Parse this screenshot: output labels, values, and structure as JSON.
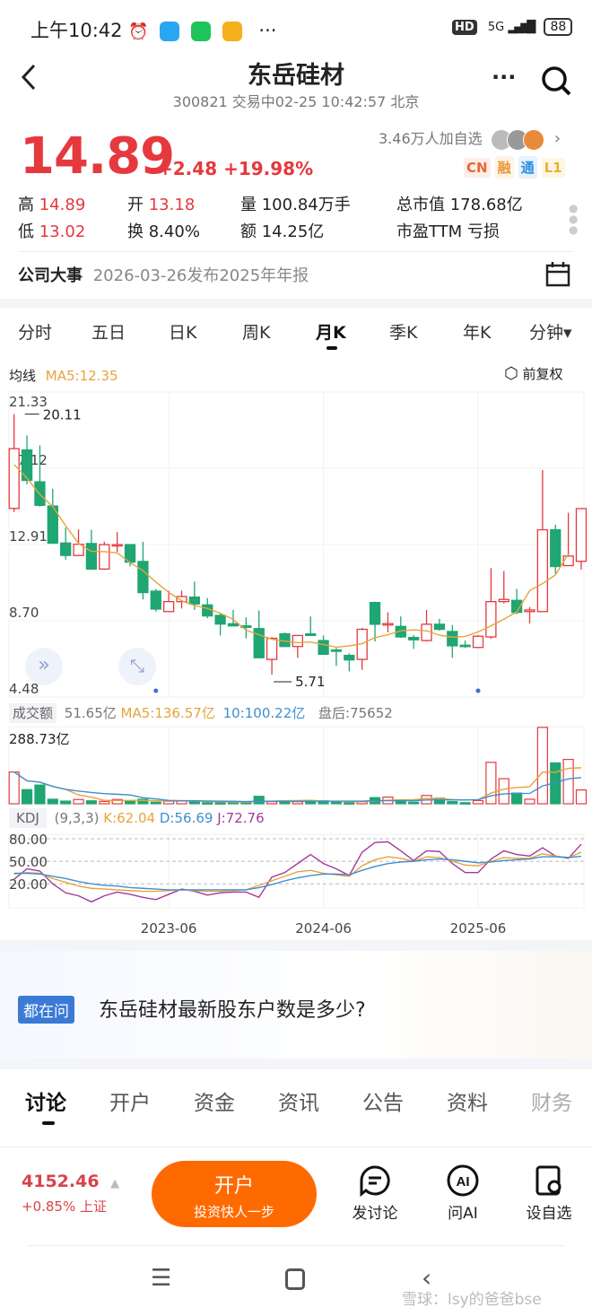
{
  "status": {
    "time": "上午10:42",
    "network": "5G",
    "battery": "88",
    "hd": "HD"
  },
  "header": {
    "title": "东岳硅材",
    "subtitle": "300821 交易中02-25 10:42:57 北京"
  },
  "quote": {
    "price": "14.89",
    "change": "+2.48",
    "pct": "+19.98%",
    "followers": "3.46万人加自选",
    "badges": [
      "CN",
      "融",
      "通",
      "L1"
    ]
  },
  "stats": {
    "high_label": "高",
    "high": "14.89",
    "open_label": "开",
    "open": "13.18",
    "vol_label": "量",
    "vol": "100.84万手",
    "mcap_label": "总市值",
    "mcap": "178.68亿",
    "low_label": "低",
    "low": "13.02",
    "turn_label": "换",
    "turn": "8.40%",
    "amt_label": "额",
    "amt": "14.25亿",
    "pe_label": "市盈TTM",
    "pe": "亏损"
  },
  "event": {
    "label": "公司大事",
    "text": "2026-03-26发布2025年年报"
  },
  "period_tabs": [
    "分时",
    "五日",
    "日K",
    "周K",
    "月K",
    "季K",
    "年K",
    "分钟▾"
  ],
  "active_tab": 4,
  "ma_legend": {
    "label": "均线",
    "ma5": "MA5:12.35",
    "adjust": "前复权"
  },
  "colors": {
    "up": "#e5393e",
    "down": "#1fa672",
    "ma5": "#e8a33a",
    "ma10": "#3d8fd1",
    "j": "#a4399b",
    "accent": "#ff6a00"
  },
  "chart_data": [
    {
      "type": "candlestick",
      "ylim": [
        4.48,
        21.33
      ],
      "y_ticks": [
        "21.33",
        "17.12",
        "12.91",
        "8.70",
        "4.48"
      ],
      "max_label": "20.11",
      "min_label": "5.71",
      "x_ticks": [
        "2023-06",
        "2024-06",
        "2025-06"
      ],
      "x_tick_index": [
        12,
        24,
        36
      ],
      "candles": [
        [
          14.9,
          20.11,
          14.7,
          18.2
        ],
        [
          18.13,
          18.93,
          16.23,
          16.45
        ],
        [
          16.37,
          18.38,
          15.0,
          15.07
        ],
        [
          15.03,
          15.98,
          12.98,
          12.98
        ],
        [
          12.99,
          13.84,
          12.07,
          12.3
        ],
        [
          12.3,
          13.75,
          12.26,
          12.92
        ],
        [
          12.96,
          13.72,
          11.55,
          11.55
        ],
        [
          11.55,
          13.06,
          11.5,
          12.9
        ],
        [
          12.85,
          13.59,
          12.5,
          12.9
        ],
        [
          12.9,
          12.93,
          11.7,
          11.93
        ],
        [
          11.97,
          13.06,
          9.87,
          10.25
        ],
        [
          10.33,
          10.45,
          9.2,
          9.34
        ],
        [
          9.2,
          10.35,
          9.2,
          9.75
        ],
        [
          9.75,
          10.36,
          9.37,
          10.03
        ],
        [
          10.0,
          10.86,
          9.29,
          9.62
        ],
        [
          9.57,
          9.95,
          8.83,
          8.96
        ],
        [
          8.99,
          9.12,
          7.88,
          8.51
        ],
        [
          8.53,
          9.29,
          8.41,
          8.41
        ],
        [
          8.41,
          8.88,
          7.72,
          8.33
        ],
        [
          8.26,
          9.26,
          6.65,
          6.65
        ],
        [
          6.56,
          7.8,
          5.71,
          7.72
        ],
        [
          7.97,
          8.05,
          7.27,
          7.27
        ],
        [
          7.27,
          7.9,
          6.65,
          7.88
        ],
        [
          7.97,
          8.93,
          7.85,
          7.88
        ],
        [
          7.6,
          7.88,
          6.81,
          6.84
        ],
        [
          7.08,
          7.2,
          6.2,
          7.05
        ],
        [
          6.78,
          6.89,
          5.9,
          6.53
        ],
        [
          6.56,
          8.3,
          5.98,
          8.22
        ],
        [
          9.7,
          9.75,
          7.55,
          8.5
        ],
        [
          8.46,
          9.16,
          8.05,
          8.54
        ],
        [
          8.38,
          8.93,
          7.75,
          7.8
        ],
        [
          7.77,
          7.9,
          7.14,
          7.64
        ],
        [
          7.6,
          9.29,
          7.55,
          8.5
        ],
        [
          8.5,
          8.8,
          8.15,
          8.22
        ],
        [
          8.1,
          8.46,
          6.65,
          7.31
        ],
        [
          7.34,
          7.6,
          7.2,
          7.27
        ],
        [
          7.22,
          7.9,
          7.18,
          7.84
        ],
        [
          7.8,
          11.6,
          7.7,
          9.75
        ],
        [
          9.75,
          11.44,
          9.65,
          9.87
        ],
        [
          9.82,
          10.45,
          9.05,
          9.16
        ],
        [
          9.2,
          9.45,
          8.55,
          9.29
        ],
        [
          9.2,
          17.02,
          9.2,
          13.72
        ],
        [
          13.72,
          14.0,
          11.3,
          11.69
        ],
        [
          11.74,
          14.66,
          11.74,
          12.27
        ],
        [
          11.98,
          14.89,
          11.52,
          14.89
        ]
      ]
    },
    {
      "type": "bar",
      "label": "成交额",
      "current": "51.65亿",
      "ma5": "MA5:136.57亿",
      "ma10": "10:100.22亿",
      "after": "盘后:75652",
      "ymax_label": "288.73亿",
      "ymax": 288.73,
      "values": [
        119,
        53,
        70,
        17,
        10,
        16,
        11,
        9,
        16,
        10,
        17,
        6,
        10,
        10,
        11,
        4,
        4,
        5,
        5,
        28,
        8,
        11,
        8,
        11,
        11,
        6,
        4,
        8,
        23,
        25,
        14,
        6,
        31,
        21,
        8,
        4,
        12,
        155,
        94,
        40,
        17,
        286,
        153,
        166,
        51.65
      ]
    },
    {
      "type": "line",
      "label": "KDJ",
      "params": "(9,3,3)",
      "k_label": "K:62.04",
      "d_label": "D:56.69",
      "j_label": "J:72.76",
      "ylim": [
        -12,
        86
      ],
      "y_ticks": [
        "80.00",
        "50.00",
        "20.00"
      ],
      "K": [
        33,
        35,
        34,
        27,
        22,
        17,
        14,
        13,
        12,
        11,
        10,
        10,
        11,
        12,
        11,
        10,
        10,
        11,
        12,
        18,
        24,
        30,
        36,
        38,
        34,
        32,
        30,
        44,
        52,
        56,
        54,
        50,
        56,
        55,
        50,
        45,
        44,
        50,
        55,
        54,
        54,
        60,
        57,
        55,
        62.04
      ],
      "D": [
        34,
        34,
        33,
        30,
        27,
        23,
        20,
        18,
        17,
        15,
        14,
        13,
        12,
        12,
        12,
        12,
        12,
        12,
        12,
        15,
        19,
        24,
        28,
        31,
        33,
        33,
        32,
        38,
        43,
        47,
        49,
        50,
        52,
        53,
        52,
        50,
        48,
        49,
        51,
        52,
        53,
        56,
        56,
        55,
        56.69
      ],
      "J": [
        26,
        40,
        37,
        20,
        8,
        4,
        -4,
        4,
        9,
        6,
        2,
        -1,
        6,
        13,
        10,
        5,
        8,
        9,
        9,
        2,
        29,
        35,
        47,
        59,
        47,
        40,
        31,
        62,
        75,
        76,
        64,
        51,
        64,
        63,
        47,
        35,
        35,
        53,
        64,
        59,
        57,
        68,
        57,
        54,
        72.76
      ]
    }
  ],
  "ask": {
    "tag": "都在问",
    "question": "东岳硅材最新股东户数是多少?"
  },
  "content_tabs": [
    "讨论",
    "开户",
    "资金",
    "资讯",
    "公告",
    "资料",
    "财务"
  ],
  "bottom": {
    "index_value": "4152.46",
    "index_change": "+0.85% 上证",
    "cta_title": "开户",
    "cta_sub": "投资快人一步",
    "discuss": "发讨论",
    "ai": "问AI",
    "watch": "设自选"
  },
  "watermark": "雪球：lsy的爸爸bse"
}
